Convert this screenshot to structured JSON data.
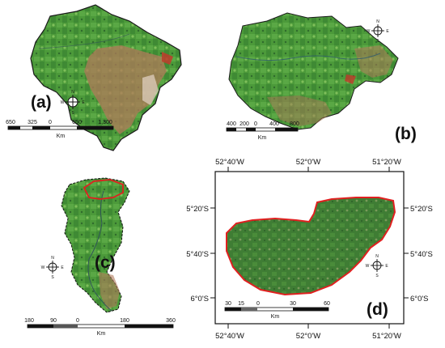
{
  "colors": {
    "vegetation": "#4c9a3a",
    "vegetation_dark": "#2f6b2c",
    "vegetation_light": "#7fbf5a",
    "cleared_land": "#b07a5a",
    "red_outline": "#e02020",
    "frame": "#000000"
  },
  "panels": {
    "a": {
      "label": "(a)",
      "scale_ticks": [
        "650",
        "325",
        "0",
        "650",
        "1,300"
      ],
      "unit": "Km",
      "compass": [
        "N",
        "S",
        "W",
        "E"
      ]
    },
    "b": {
      "label": "(b)",
      "scale_ticks": [
        "400",
        "200",
        "0",
        "400",
        "800"
      ],
      "unit": "Km",
      "compass": [
        "N",
        "S",
        "W",
        "E"
      ]
    },
    "c": {
      "label": "(c)",
      "scale_ticks": [
        "180",
        "90",
        "0",
        "180",
        "360"
      ],
      "unit": "Km",
      "compass": [
        "N",
        "S",
        "W",
        "E"
      ]
    },
    "d": {
      "label": "(d)",
      "scale_ticks": [
        "30",
        "15",
        "0",
        "30",
        "60"
      ],
      "unit": "Km",
      "compass": [
        "N",
        "S",
        "W",
        "E"
      ],
      "lon_top": [
        "52°40'W",
        "52°0'W",
        "51°20'W"
      ],
      "lon_bottom": [
        "52°40'W",
        "52°0'W",
        "51°20'W"
      ],
      "lat_left": [
        "5°20'S",
        "5°40'S",
        "6°0'S"
      ],
      "lat_right": [
        "5°20'S",
        "5°40'S",
        "6°0'S"
      ]
    }
  }
}
